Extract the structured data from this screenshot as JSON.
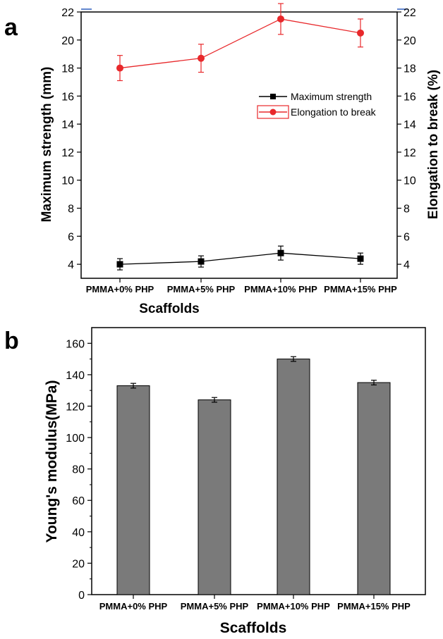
{
  "panels": {
    "a": {
      "label": "a"
    },
    "b": {
      "label": "b"
    }
  },
  "colors": {
    "max_strength": "#000000",
    "elongation": "#e8282b",
    "bar_fill": "#7a7a7a"
  },
  "chart_data": [
    {
      "type": "line",
      "panel": "a",
      "categories": [
        "PMMA+0% PHP",
        "PMMA+5% PHP",
        "PMMA+10% PHP",
        "PMMA+15% PHP"
      ],
      "xlabel": "Scaffolds",
      "ylabel": "Maximum strength (mm)",
      "y2label": "Elongation to break (%)",
      "ylim": [
        3,
        22
      ],
      "y2lim": [
        3,
        22
      ],
      "yticks": [
        4,
        6,
        8,
        10,
        12,
        14,
        16,
        18,
        20,
        22
      ],
      "y2ticks": [
        4,
        6,
        8,
        10,
        12,
        14,
        16,
        18,
        20,
        22
      ],
      "legend_position": "right",
      "grid": false,
      "series": [
        {
          "name": "Maximum strength",
          "axis": "left",
          "marker": "square",
          "values": [
            4.0,
            4.2,
            4.8,
            4.4
          ],
          "errors": [
            0.4,
            0.4,
            0.5,
            0.4
          ]
        },
        {
          "name": "Elongation to break",
          "axis": "right",
          "marker": "circle",
          "values": [
            18.0,
            18.7,
            21.5,
            20.5
          ],
          "errors": [
            0.9,
            1.0,
            1.1,
            1.0
          ]
        }
      ]
    },
    {
      "type": "bar",
      "panel": "b",
      "categories": [
        "PMMA+0% PHP",
        "PMMA+5% PHP",
        "PMMA+10% PHP",
        "PMMA+15% PHP"
      ],
      "xlabel": "Scaffolds",
      "ylabel": "Young's modulus(MPa)",
      "ylim": [
        0,
        170
      ],
      "yticks": [
        0,
        20,
        40,
        60,
        80,
        100,
        120,
        140,
        160
      ],
      "grid": false,
      "values": [
        133,
        124,
        150,
        135
      ],
      "errors": [
        1.5,
        1.5,
        1.5,
        1.5
      ]
    }
  ]
}
